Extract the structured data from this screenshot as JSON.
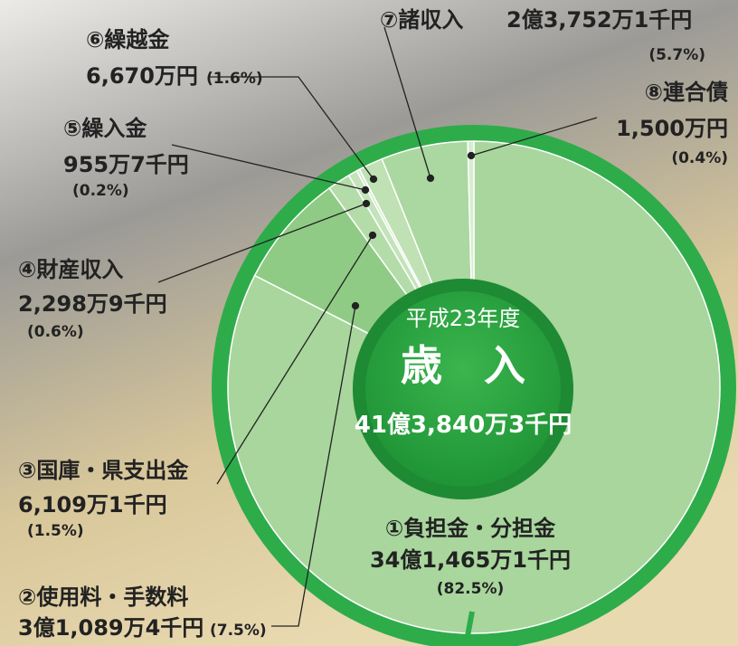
{
  "chart_data": {
    "type": "pie",
    "title": "平成23年度",
    "subtitle": "歳　入",
    "total": "41億3,840万3千円",
    "categories": [
      "①負担金・分担金",
      "②使用料・手数料",
      "③国庫・県支出金",
      "④財産収入",
      "⑤繰入金",
      "⑥繰越金",
      "⑦諸収入",
      "⑧連合債"
    ],
    "amounts": [
      "34億1,465万1千円",
      "3億1,089万4千円",
      "6,109万1千円",
      "2,298万9千円",
      "955万7千円",
      "6,670万円",
      "2億3,752万1千円",
      "1,500万円"
    ],
    "values": [
      82.5,
      7.5,
      1.5,
      0.6,
      0.2,
      1.6,
      5.7,
      0.4
    ],
    "value_labels": [
      "(82.5%)",
      "(7.5%)",
      "(1.5%)",
      "(0.6%)",
      "(0.2%)",
      "(1.6%)",
      "(5.7%)",
      "(0.4%)"
    ],
    "colors": [
      "#a8d69d",
      "#8fcb84",
      "#b4dca9",
      "#c4e3ba",
      "#d4ebcb",
      "#bfe1b4",
      "#abd8a1",
      "#d6edcf"
    ]
  }
}
